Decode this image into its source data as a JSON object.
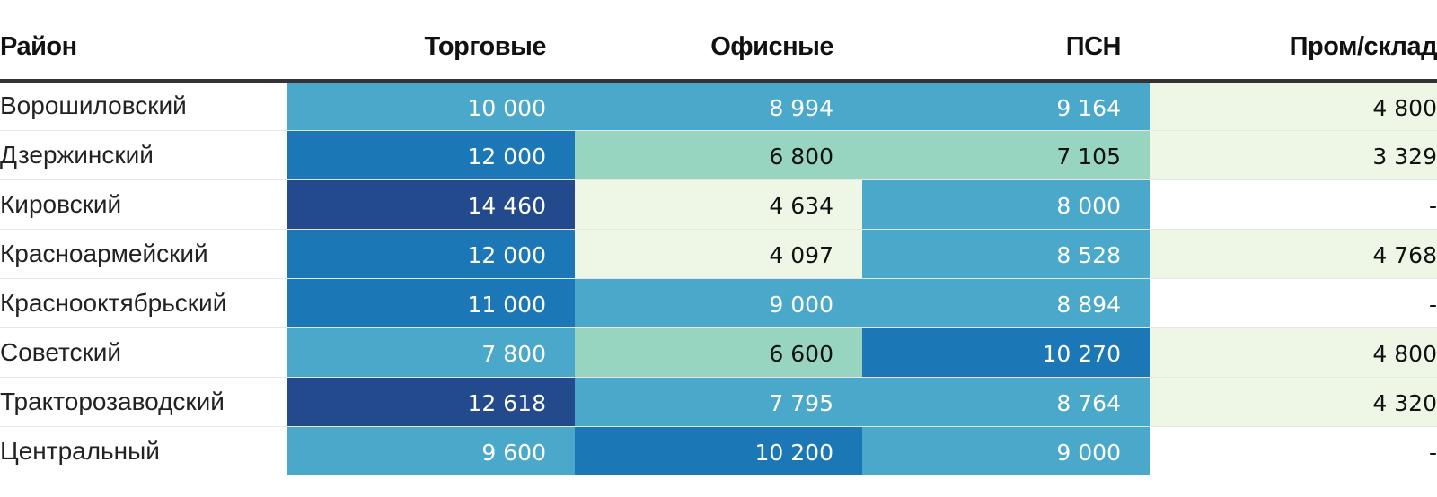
{
  "chart_data": {
    "type": "table",
    "columns": [
      "Район",
      "Торговые",
      "Офисные",
      "ПСН",
      "Пром/склад"
    ],
    "rows": [
      {
        "district": "Ворошиловский",
        "values": [
          "10 000",
          "8 994",
          "9 164",
          "4 800"
        ]
      },
      {
        "district": "Дзержинский",
        "values": [
          "12 000",
          "6 800",
          "7 105",
          "3 329"
        ]
      },
      {
        "district": "Кировский",
        "values": [
          "14 460",
          "4 634",
          "8 000",
          "-"
        ]
      },
      {
        "district": "Красноармейский",
        "values": [
          "12 000",
          "4 097",
          "8 528",
          "4 768"
        ]
      },
      {
        "district": "Краснооктябрьский",
        "values": [
          "11 000",
          "9 000",
          "8 894",
          "-"
        ]
      },
      {
        "district": "Советский",
        "values": [
          "7 800",
          "6 600",
          "10 270",
          "4 800"
        ]
      },
      {
        "district": "Тракторозаводский",
        "values": [
          "12 618",
          "7 795",
          "8 764",
          "4 320"
        ]
      },
      {
        "district": "Центральный",
        "values": [
          "9 600",
          "10 200",
          "9 000",
          "-"
        ]
      }
    ],
    "numeric_values": [
      [
        10000,
        8994,
        9164,
        4800
      ],
      [
        12000,
        6800,
        7105,
        3329
      ],
      [
        14460,
        4634,
        8000,
        null
      ],
      [
        12000,
        4097,
        8528,
        4768
      ],
      [
        11000,
        9000,
        8894,
        null
      ],
      [
        7800,
        6600,
        10270,
        4800
      ],
      [
        12618,
        7795,
        8764,
        4320
      ],
      [
        9600,
        10200,
        9000,
        null
      ]
    ],
    "color_scale": [
      {
        "min": 0,
        "color": "#eef7e6",
        "text": "#111111"
      },
      {
        "min": 6000,
        "color": "#98d5c1",
        "text": "#111111"
      },
      {
        "min": 7500,
        "color": "#4aa8cb",
        "text": "#ffffff"
      },
      {
        "min": 10200,
        "color": "#1c77b6",
        "text": "#ffffff"
      },
      {
        "min": 12500,
        "color": "#234a8c",
        "text": "#ffffff"
      }
    ],
    "empty_color": "#ffffff"
  }
}
